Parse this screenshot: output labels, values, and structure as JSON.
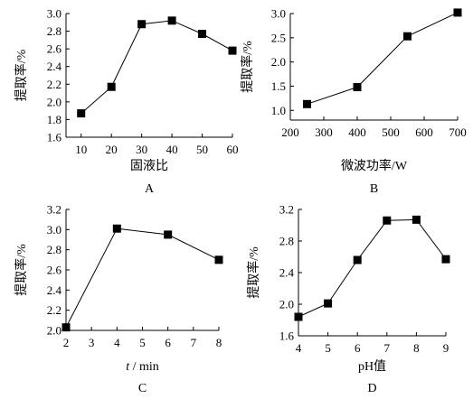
{
  "chart_data": [
    {
      "panel": "A",
      "type": "line",
      "xlabel": "固液比",
      "ylabel": "提取率/%",
      "x": [
        10,
        20,
        30,
        40,
        50,
        60
      ],
      "y": [
        1.87,
        2.17,
        2.88,
        2.92,
        2.77,
        2.58
      ],
      "xlim": [
        5,
        60
      ],
      "ylim": [
        1.6,
        3.0
      ],
      "xticks": [
        10,
        20,
        30,
        40,
        50,
        60
      ],
      "yticks": [
        1.6,
        1.8,
        2.0,
        2.2,
        2.4,
        2.6,
        2.8,
        3.0
      ],
      "ytick_labels": [
        "1.6",
        "1.8",
        "2.0",
        "2.2",
        "2.4",
        "2.6",
        "2.8",
        "3.0"
      ],
      "marker": "square",
      "grid": false
    },
    {
      "panel": "B",
      "type": "line",
      "xlabel": "微波功率/W",
      "ylabel": "提取率/%",
      "x": [
        250,
        400,
        550,
        700
      ],
      "y": [
        1.13,
        1.48,
        2.53,
        3.02
      ],
      "xlim": [
        200,
        700
      ],
      "ylim": [
        0.8,
        3.0
      ],
      "xticks": [
        200,
        300,
        400,
        500,
        600,
        700
      ],
      "yticks": [
        1.0,
        1.5,
        2.0,
        2.5,
        3.0
      ],
      "ytick_labels": [
        "1.0",
        "1.5",
        "2.0",
        "2.5",
        "3.0"
      ],
      "marker": "square",
      "grid": false
    },
    {
      "panel": "C",
      "type": "line",
      "xlabel": "t / min",
      "ylabel": "提取率/%",
      "x": [
        2,
        4,
        6,
        8
      ],
      "y": [
        2.03,
        3.01,
        2.95,
        2.7
      ],
      "xlim": [
        2,
        8
      ],
      "ylim": [
        2.0,
        3.2
      ],
      "xticks": [
        2,
        3,
        4,
        5,
        6,
        7,
        8
      ],
      "yticks": [
        2.0,
        2.2,
        2.4,
        2.6,
        2.8,
        3.0,
        3.2
      ],
      "ytick_labels": [
        "2.0",
        "2.2",
        "2.4",
        "2.6",
        "2.8",
        "3.0",
        "3.2"
      ],
      "marker": "square",
      "grid": false
    },
    {
      "panel": "D",
      "type": "line",
      "xlabel": "pH值",
      "ylabel": "提取率/%",
      "x": [
        4,
        5,
        6,
        7,
        8,
        9
      ],
      "y": [
        1.84,
        2.01,
        2.56,
        3.06,
        3.07,
        2.57
      ],
      "xlim": [
        4,
        9
      ],
      "ylim": [
        1.6,
        3.2
      ],
      "xticks": [
        4,
        5,
        6,
        7,
        8,
        9
      ],
      "yticks": [
        1.6,
        2.0,
        2.4,
        2.8,
        3.2
      ],
      "ytick_labels": [
        "1.6",
        "2.0",
        "2.4",
        "2.8",
        "3.2"
      ],
      "marker": "square",
      "grid": false
    }
  ]
}
